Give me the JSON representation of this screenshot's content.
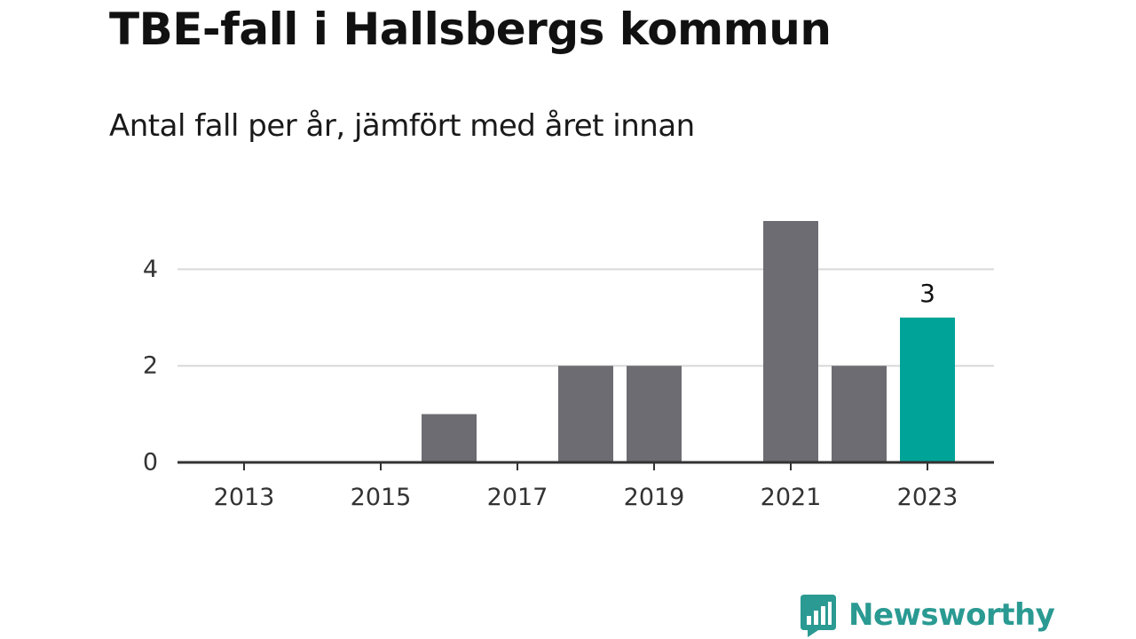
{
  "title": "TBE-fall i Hallsbergs kommun",
  "subtitle": "Antal fall per år, jämfört med året innan",
  "brand": {
    "name": "Newsworthy",
    "icon": "newsworthy-logo-icon",
    "color": "#2a9a92"
  },
  "colors": {
    "bar": "#6d6c72",
    "highlight": "#00a398",
    "grid": "#d9d9d9",
    "axis": "#333333"
  },
  "chart_data": {
    "type": "bar",
    "categories": [
      "2013",
      "2014",
      "2015",
      "2016",
      "2017",
      "2018",
      "2019",
      "2020",
      "2021",
      "2022",
      "2023"
    ],
    "values": [
      0,
      0,
      0,
      1,
      0,
      2,
      2,
      0,
      5,
      2,
      3
    ],
    "x_tick_labels": [
      "2013",
      "2015",
      "2017",
      "2019",
      "2021",
      "2023"
    ],
    "y_ticks": [
      0,
      2,
      4
    ],
    "ylim": [
      0,
      5
    ],
    "highlight": "2023",
    "data_labels": [
      {
        "category": "2023",
        "text": "3"
      }
    ],
    "xlabel": "",
    "ylabel": "",
    "grid": true,
    "legend": "none"
  }
}
